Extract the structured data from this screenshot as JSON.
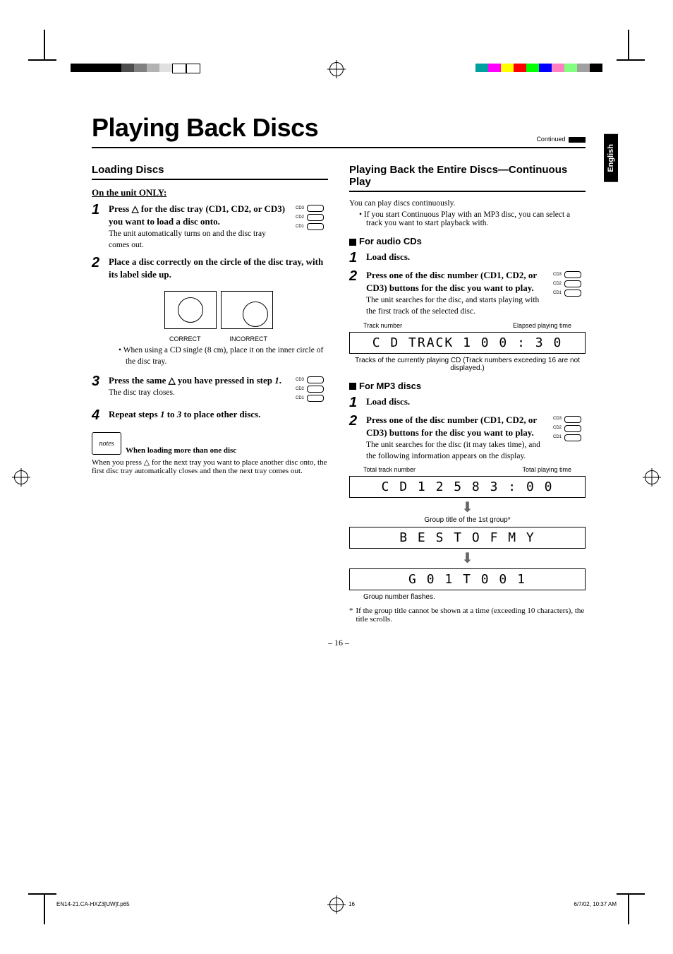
{
  "crop_colorbar_left": [
    "#000000",
    "#000000",
    "#000000",
    "#000000",
    "#4d4d4d",
    "#808080",
    "#b3b3b3",
    "#e0e0e0",
    "#ffffff",
    "#ffffff"
  ],
  "crop_colorbar_right": [
    "#00a0a0",
    "#ff00ff",
    "#ffff00",
    "#ff0000",
    "#00ff00",
    "#0000ff",
    "#ff80c0",
    "#80ff80",
    "#a0a0a0",
    "#000000"
  ],
  "lang_tab": "English",
  "title": "Playing Back Discs",
  "continued_label": "Continued",
  "left": {
    "section": "Loading Discs",
    "on_unit": "On the unit ONLY:",
    "step1_bold": "Press △ for the disc tray (CD1, CD2, or CD3) you want to load a disc onto.",
    "step1_light": "The unit automatically turns on and the disc tray comes out.",
    "step2_bold": "Place a disc correctly on the circle of the disc tray, with its label side up.",
    "disc_labels": {
      "correct": "CORRECT",
      "incorrect": "INCORRECT"
    },
    "step2_bullet": "When using a CD single (8 cm), place it on the inner circle of the disc tray.",
    "step3_bold_a": "Press the same △ you have pressed in step ",
    "step3_bold_b": "1",
    "step3_bold_c": ".",
    "step3_light": "The disc tray closes.",
    "step4_bold_a": "Repeat steps ",
    "step4_bold_b": "1",
    "step4_bold_c": " to ",
    "step4_bold_d": "3",
    "step4_bold_e": " to place other discs.",
    "note_icon": "notes",
    "note_title": "When loading more than one disc",
    "note_body": "When you press △ for the next tray you want to place another disc onto, the first disc tray automatically closes and then the next tray comes out."
  },
  "right": {
    "section": "Playing Back the Entire Discs—Continuous Play",
    "intro1": "You can play discs continuously.",
    "intro2": "If you start Continuous Play with an MP3 disc, you can select a track you want to start playback with.",
    "audio_heading": "For audio CDs",
    "a_step1": "Load discs.",
    "a_step2_bold": "Press one of the disc number (CD1, CD2, or CD3) buttons for the disc you want to play.",
    "a_step2_light": "The unit searches for the disc, and starts playing with the first track of the selected disc.",
    "cd_btn_labels": [
      "CD3",
      "CD2",
      "CD1"
    ],
    "a_disp_left_label": "Track number",
    "a_disp_right_label": "Elapsed playing time",
    "a_display": "C D   TRACK 1    0 0 : 3 0",
    "a_caption": "Tracks of the currently playing CD (Track numbers exceeding 16 are not displayed.)",
    "mp3_heading": "For MP3 discs",
    "m_step1": "Load discs.",
    "m_step2_bold": "Press one of the disc number (CD1, CD2, or CD3) buttons for the disc you want to play.",
    "m_step2_light": "The unit searches for the disc (it may takes time), and the following information appears on the display.",
    "m_disp1_left_label": "Total track number",
    "m_disp1_right_label": "Total playing time",
    "m_display1": "C D  1 2 5   8 3 : 0 0",
    "m_caption1": "Group title of the 1st group*",
    "m_display2": "B E S T   O F   M Y",
    "m_display3": "G 0 1   T 0 0 1",
    "m_caption3": "Group number flashes.",
    "footnote_a": "*",
    "footnote_b": "If the group title cannot be shown at a time (exceeding 10 characters), the title scrolls."
  },
  "page_num": "– 16 –",
  "footer": {
    "file": "EN14-21.CA-HXZ3[UW]f.p65",
    "page": "16",
    "datetime": "6/7/02, 10:37 AM"
  }
}
